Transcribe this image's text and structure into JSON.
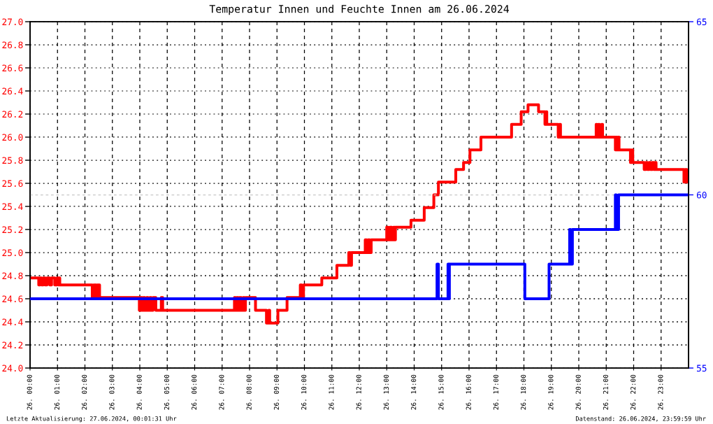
{
  "chart_data": {
    "type": "step",
    "title": "Temperatur Innen und Feuchte Innen am 26.06.2024",
    "xlim": [
      "2024-06-26T00:00",
      "2024-06-27T00:00"
    ],
    "xticks": [
      {
        "value": "2024-06-26T00:00",
        "label": "26. 00:00"
      },
      {
        "value": "2024-06-26T01:00",
        "label": "26. 01:00"
      },
      {
        "value": "2024-06-26T02:00",
        "label": "26. 02:00"
      },
      {
        "value": "2024-06-26T03:00",
        "label": "26. 03:00"
      },
      {
        "value": "2024-06-26T04:00",
        "label": "26. 04:00"
      },
      {
        "value": "2024-06-26T05:00",
        "label": "26. 05:00"
      },
      {
        "value": "2024-06-26T06:00",
        "label": "26. 06:00"
      },
      {
        "value": "2024-06-26T07:00",
        "label": "26. 07:00"
      },
      {
        "value": "2024-06-26T08:00",
        "label": "26. 08:00"
      },
      {
        "value": "2024-06-26T09:00",
        "label": "26. 09:00"
      },
      {
        "value": "2024-06-26T10:00",
        "label": "26. 10:00"
      },
      {
        "value": "2024-06-26T11:00",
        "label": "26. 11:00"
      },
      {
        "value": "2024-06-26T12:00",
        "label": "26. 12:00"
      },
      {
        "value": "2024-06-26T13:00",
        "label": "26. 13:00"
      },
      {
        "value": "2024-06-26T14:00",
        "label": "26. 14:00"
      },
      {
        "value": "2024-06-26T15:00",
        "label": "26. 15:00"
      },
      {
        "value": "2024-06-26T16:00",
        "label": "26. 16:00"
      },
      {
        "value": "2024-06-26T17:00",
        "label": "26. 17:00"
      },
      {
        "value": "2024-06-26T18:00",
        "label": "26. 18:00"
      },
      {
        "value": "2024-06-26T19:00",
        "label": "26. 19:00"
      },
      {
        "value": "2024-06-26T20:00",
        "label": "26. 20:00"
      },
      {
        "value": "2024-06-26T21:00",
        "label": "26. 21:00"
      },
      {
        "value": "2024-06-26T22:00",
        "label": "26. 22:00"
      },
      {
        "value": "2024-06-26T23:00",
        "label": "26. 23:00"
      }
    ],
    "ylim": [
      24,
      27
    ],
    "yticks": [
      {
        "value": 24,
        "label": "24.0"
      },
      24.2,
      24.4,
      24.6,
      24.8,
      {
        "value": 25,
        "label": "25.0"
      },
      25.2,
      25.4,
      25.6,
      25.8,
      {
        "value": 26,
        "label": "26.0"
      },
      26.2,
      26.4,
      26.6,
      26.8,
      {
        "value": 27,
        "label": "27.0"
      }
    ],
    "y2lim": [
      55,
      65
    ],
    "y2ticks": [
      55,
      60,
      65
    ],
    "grid": true,
    "ref_lines": [
      {
        "axis": "y2",
        "value": 60,
        "color": "#c8c8c8",
        "line_style": "dashed"
      }
    ],
    "annotations": [
      "Letzte Aktualisierung: 27.06.2024, 00:01:31 Uhr",
      "Datenstand: 26.06.2024, 23:59:59 Uhr"
    ],
    "series": [
      {
        "color": "#ff0000",
        "x": [
          "2024-06-26T00:00",
          "2024-06-26T00:19",
          "2024-06-26T00:22",
          "2024-06-26T00:25",
          "2024-06-26T00:29",
          "2024-06-26T00:33",
          "2024-06-26T00:37",
          "2024-06-26T00:43",
          "2024-06-26T00:47",
          "2024-06-26T00:54",
          "2024-06-26T00:59",
          "2024-06-26T01:02",
          "2024-06-26T01:04",
          "2024-06-26T01:05",
          "2024-06-26T02:16",
          "2024-06-26T02:19",
          "2024-06-26T02:22",
          "2024-06-26T02:23",
          "2024-06-26T02:25",
          "2024-06-26T02:27",
          "2024-06-26T02:32",
          "2024-06-26T03:59",
          "2024-06-26T04:02",
          "2024-06-26T04:05",
          "2024-06-26T04:08",
          "2024-06-26T04:11",
          "2024-06-26T04:15",
          "2024-06-26T04:18",
          "2024-06-26T04:22",
          "2024-06-26T04:25",
          "2024-06-26T04:29",
          "2024-06-26T04:35",
          "2024-06-26T04:47",
          "2024-06-26T04:50",
          "2024-06-26T07:27",
          "2024-06-26T07:29",
          "2024-06-26T07:32",
          "2024-06-26T07:35",
          "2024-06-26T07:38",
          "2024-06-26T07:42",
          "2024-06-26T07:46",
          "2024-06-26T07:49",
          "2024-06-26T07:51",
          "2024-06-26T08:13",
          "2024-06-26T08:37",
          "2024-06-26T08:42",
          "2024-06-26T08:44",
          "2024-06-26T09:02",
          "2024-06-26T09:22",
          "2024-06-26T09:51",
          "2024-06-26T09:54",
          "2024-06-26T09:58",
          "2024-06-26T10:38",
          "2024-06-26T11:11",
          "2024-06-26T11:37",
          "2024-06-26T11:40",
          "2024-06-26T11:43",
          "2024-06-26T12:13",
          "2024-06-26T12:16",
          "2024-06-26T12:19",
          "2024-06-26T12:23",
          "2024-06-26T12:26",
          "2024-06-26T13:00",
          "2024-06-26T13:03",
          "2024-06-26T13:07",
          "2024-06-26T13:11",
          "2024-06-26T13:15",
          "2024-06-26T13:17",
          "2024-06-26T13:19",
          "2024-06-26T13:53",
          "2024-06-26T14:22",
          "2024-06-26T14:43",
          "2024-06-26T14:53",
          "2024-06-26T15:31",
          "2024-06-26T15:48",
          "2024-06-26T16:02",
          "2024-06-26T16:26",
          "2024-06-26T17:33",
          "2024-06-26T17:54",
          "2024-06-26T18:09",
          "2024-06-26T18:32",
          "2024-06-26T18:46",
          "2024-06-26T18:48",
          "2024-06-26T18:50",
          "2024-06-26T19:15",
          "2024-06-26T19:18",
          "2024-06-26T19:20",
          "2024-06-26T20:38",
          "2024-06-26T20:40",
          "2024-06-26T20:43",
          "2024-06-26T20:45",
          "2024-06-26T20:50",
          "2024-06-26T20:52",
          "2024-06-26T21:20",
          "2024-06-26T21:22",
          "2024-06-26T21:24",
          "2024-06-26T21:26",
          "2024-06-26T21:28",
          "2024-06-26T21:53",
          "2024-06-26T21:56",
          "2024-06-26T21:58",
          "2024-06-26T22:23",
          "2024-06-26T22:27",
          "2024-06-26T22:30",
          "2024-06-26T22:34",
          "2024-06-26T22:37",
          "2024-06-26T22:41",
          "2024-06-26T22:44",
          "2024-06-26T22:47",
          "2024-06-26T22:49",
          "2024-06-26T23:50",
          "2024-06-26T23:53",
          "2024-06-26T23:56",
          "2024-06-26T23:59"
        ],
        "values": [
          24.78,
          24.72,
          24.78,
          24.72,
          24.78,
          24.72,
          24.78,
          24.72,
          24.78,
          24.72,
          24.78,
          24.72,
          24.78,
          24.72,
          24.61,
          24.72,
          24.61,
          24.72,
          24.61,
          24.72,
          24.61,
          24.5,
          24.61,
          24.5,
          24.61,
          24.5,
          24.61,
          24.5,
          24.61,
          24.5,
          24.61,
          24.5,
          24.61,
          24.5,
          24.61,
          24.5,
          24.61,
          24.5,
          24.61,
          24.5,
          24.61,
          24.5,
          24.61,
          24.5,
          24.39,
          24.5,
          24.39,
          24.5,
          24.61,
          24.72,
          24.61,
          24.72,
          24.78,
          24.89,
          25.0,
          24.89,
          25.0,
          25.11,
          25.0,
          25.11,
          25.0,
          25.11,
          25.22,
          25.11,
          25.22,
          25.11,
          25.22,
          25.11,
          25.22,
          25.28,
          25.39,
          25.5,
          25.61,
          25.72,
          25.78,
          25.89,
          26.0,
          26.11,
          26.22,
          26.28,
          26.22,
          26.11,
          26.22,
          26.11,
          26.0,
          26.11,
          26.0,
          26.11,
          26.0,
          26.11,
          26.0,
          26.11,
          26.0,
          25.89,
          26.0,
          25.89,
          26.0,
          25.89,
          25.78,
          25.89,
          25.78,
          25.72,
          25.78,
          25.72,
          25.78,
          25.72,
          25.78,
          25.72,
          25.78,
          25.72,
          25.61,
          25.72,
          25.61,
          25.61
        ]
      },
      {
        "color": "#0000ff",
        "axis": "y2",
        "x": [
          "2024-06-26T00:00",
          "2024-06-26T14:50",
          "2024-06-26T14:53",
          "2024-06-26T15:14",
          "2024-06-26T15:15",
          "2024-06-26T15:17",
          "2024-06-26T18:02",
          "2024-06-26T18:55",
          "2024-06-26T19:40",
          "2024-06-26T19:42",
          "2024-06-26T19:46",
          "2024-06-26T21:20",
          "2024-06-26T21:22",
          "2024-06-26T21:27",
          "2024-06-26T23:59"
        ],
        "values": [
          57,
          58,
          57,
          58,
          57,
          58,
          57,
          58,
          59,
          58,
          59,
          60,
          59,
          60,
          60
        ]
      }
    ]
  }
}
